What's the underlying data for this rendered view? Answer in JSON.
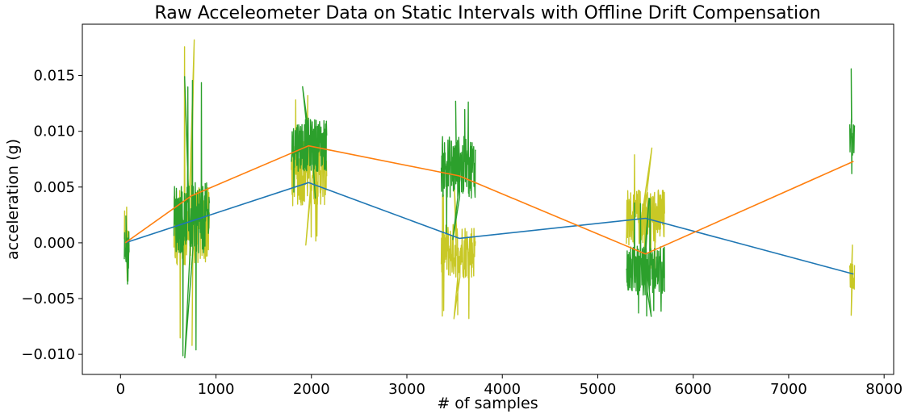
{
  "chart_data": {
    "type": "line",
    "title": "Raw Acceleometer Data on Static Intervals with Offline Drift Compensation",
    "xlabel": "# of samples",
    "ylabel": "acceleration (g)",
    "xlim": [
      -400,
      8100
    ],
    "ylim": [
      -0.0118,
      0.0196
    ],
    "x_ticks": [
      0,
      1000,
      2000,
      3000,
      4000,
      5000,
      6000,
      7000,
      8000
    ],
    "x_tick_labels": [
      "0",
      "1000",
      "2000",
      "3000",
      "4000",
      "5000",
      "6000",
      "7000",
      "8000"
    ],
    "y_ticks": [
      -0.01,
      -0.005,
      0.0,
      0.005,
      0.01,
      0.015
    ],
    "y_tick_labels": [
      "−0.010",
      "−0.005",
      "0.000",
      "0.005",
      "0.010",
      "0.015"
    ],
    "grid": false,
    "series": [
      {
        "name": "raw-yellow",
        "color": "#c8c826",
        "style": "noise",
        "intervals": [
          {
            "x": [
              40,
              90
            ],
            "center": -0.0002,
            "spread": 0.0017,
            "spike_max": 0.0032,
            "spike_min": -0.0034
          },
          {
            "x": [
              560,
              930
            ],
            "center": 0.0015,
            "spread": 0.0035,
            "spike_max": 0.0182,
            "spike_min": -0.0092
          },
          {
            "x": [
              1790,
              2160
            ],
            "center": 0.0065,
            "spread": 0.0032,
            "spike_max": 0.0132,
            "spike_min": -0.0002
          },
          {
            "x": [
              3360,
              3720
            ],
            "center": -0.0007,
            "spread": 0.0025,
            "spike_max": 0.005,
            "spike_min": -0.0068
          },
          {
            "x": [
              5300,
              5700
            ],
            "center": 0.0023,
            "spread": 0.0026,
            "spike_max": 0.0085,
            "spike_min": -0.003
          },
          {
            "x": [
              7640,
              7690
            ],
            "center": -0.003,
            "spread": 0.0012,
            "spike_max": -0.0002,
            "spike_min": -0.0065
          }
        ]
      },
      {
        "name": "raw-green",
        "color": "#2ca02c",
        "style": "noise",
        "intervals": [
          {
            "x": [
              40,
              90
            ],
            "center": -0.0006,
            "spread": 0.0017,
            "spike_max": 0.0024,
            "spike_min": -0.0037
          },
          {
            "x": [
              560,
              930
            ],
            "center": 0.0022,
            "spread": 0.0032,
            "spike_max": 0.0149,
            "spike_min": -0.0103
          },
          {
            "x": [
              1790,
              2160
            ],
            "center": 0.0088,
            "spread": 0.0024,
            "spike_max": 0.014,
            "spike_min": 0.004
          },
          {
            "x": [
              3360,
              3720
            ],
            "center": 0.0068,
            "spread": 0.0028,
            "spike_max": 0.0127,
            "spike_min": 0.0003
          },
          {
            "x": [
              5300,
              5700
            ],
            "center": -0.0025,
            "spread": 0.0022,
            "spike_max": 0.004,
            "spike_min": -0.0066
          },
          {
            "x": [
              7640,
              7690
            ],
            "center": 0.0095,
            "spread": 0.0018,
            "spike_max": 0.0156,
            "spike_min": 0.0062
          }
        ]
      },
      {
        "name": "drift-blue",
        "color": "#1f77b4",
        "style": "line",
        "x": [
          50,
          1970,
          3550,
          5500,
          7680
        ],
        "y": [
          0.0,
          0.0054,
          0.0004,
          0.0022,
          -0.0028
        ]
      },
      {
        "name": "drift-orange",
        "color": "#ff7f0e",
        "style": "line",
        "x": [
          50,
          740,
          1970,
          3550,
          5500,
          7680
        ],
        "y": [
          0.0,
          0.0042,
          0.0087,
          0.006,
          -0.001,
          0.0073
        ]
      }
    ]
  }
}
